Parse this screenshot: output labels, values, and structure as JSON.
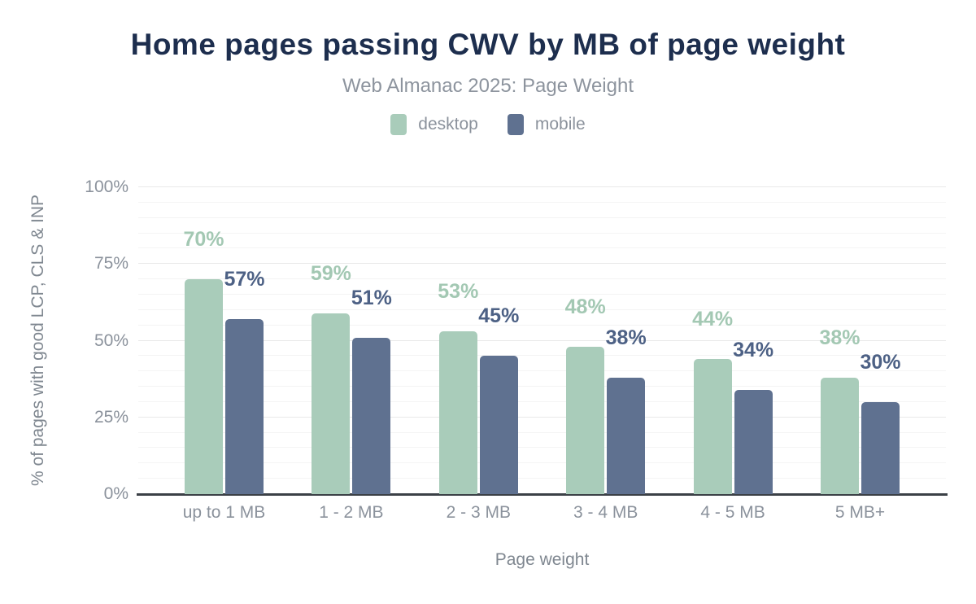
{
  "header": {
    "title": "Home pages passing CWV by MB of page weight",
    "subtitle": "Web Almanac 2025: Page Weight"
  },
  "chart_data": {
    "type": "bar",
    "title": "Home pages passing CWV by MB of page weight",
    "subtitle": "Web Almanac 2025: Page Weight",
    "categories": [
      "up to 1 MB",
      "1 - 2 MB",
      "2 - 3 MB",
      "3 - 4 MB",
      "4 - 5 MB",
      "5 MB+"
    ],
    "series": [
      {
        "name": "desktop",
        "color": "#a9ccba",
        "label_color": "#a3c8b3",
        "values": [
          70,
          59,
          53,
          48,
          44,
          38
        ]
      },
      {
        "name": "mobile",
        "color": "#5f7190",
        "label_color": "#4d6185",
        "values": [
          57,
          51,
          45,
          38,
          34,
          30
        ]
      }
    ],
    "value_suffix": "%",
    "data_labels": true,
    "xlabel": "Page weight",
    "ylabel": "% of pages with good LCP, CLS & INP",
    "ylim": [
      0,
      100
    ],
    "yticks": [
      0,
      25,
      50,
      75,
      100
    ],
    "ytick_suffix": "%",
    "grid": "horizontal, minor every 5%, major every 25%",
    "legend_position": "top"
  },
  "styles": {
    "title_color": "#1d2e4e",
    "subtitle_color": "#8d949e",
    "tick_color": "#8b929c",
    "axis_title_color": "#7f8790",
    "axis_line_color": "#3b4046",
    "grid_major_color": "#e9e9e9",
    "grid_minor_color": "#f4f4f4"
  }
}
